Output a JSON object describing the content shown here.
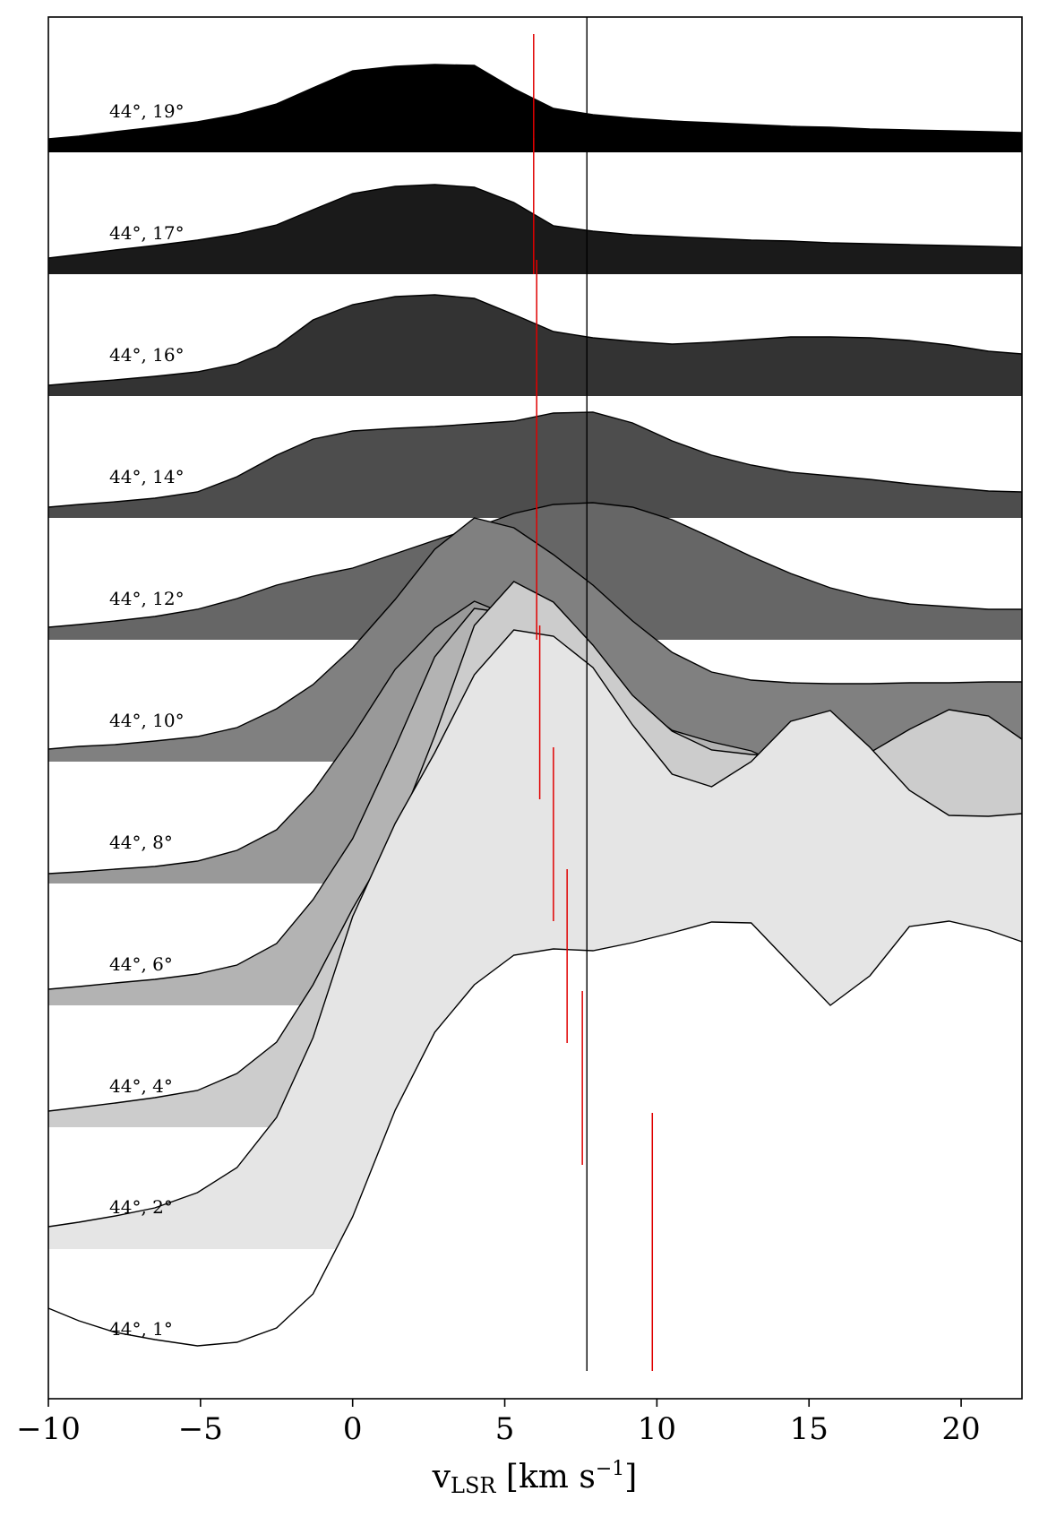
{
  "chart_data": {
    "type": "area",
    "xlabel": {
      "base": "v",
      "subscript": "LSR",
      "unit_open": " [km s",
      "superscript": "−1",
      "unit_close": "]"
    },
    "xlim": [
      -10,
      22
    ],
    "xticks": [
      -10,
      -5,
      0,
      5,
      10,
      15,
      20
    ],
    "xtick_labels": [
      "−10",
      "−5",
      "0",
      "5",
      "10",
      "15",
      "20"
    ],
    "vertical_line": {
      "x": 7.7,
      "color": "#000000"
    },
    "marker_color": "#e00000",
    "x": [
      -10,
      -9,
      -7.8,
      -6.5,
      -5.1,
      -3.8,
      -2.5,
      -1.3,
      0,
      1.4,
      2.7,
      4,
      5.3,
      6.6,
      7.9,
      9.2,
      10.5,
      11.8,
      13.1,
      14.4,
      15.7,
      17,
      18.3,
      19.6,
      20.9,
      22
    ],
    "rows": [
      {
        "label": "44°, 19°",
        "color": "#000000",
        "marker_x": 5.95,
        "values": [
          0.15,
          0.18,
          0.23,
          0.28,
          0.34,
          0.42,
          0.54,
          0.72,
          0.91,
          0.96,
          0.98,
          0.97,
          0.71,
          0.49,
          0.42,
          0.38,
          0.35,
          0.33,
          0.31,
          0.29,
          0.28,
          0.26,
          0.25,
          0.24,
          0.23,
          0.22
        ]
      },
      {
        "label": "44°, 17°",
        "color": "#1a1a1a",
        "marker_x": 5.95,
        "values": [
          0.18,
          0.22,
          0.27,
          0.32,
          0.38,
          0.45,
          0.55,
          0.72,
          0.9,
          0.98,
          1.0,
          0.97,
          0.8,
          0.54,
          0.48,
          0.44,
          0.42,
          0.4,
          0.38,
          0.37,
          0.35,
          0.34,
          0.33,
          0.32,
          0.31,
          0.3
        ]
      },
      {
        "label": "44°, 16°",
        "color": "#333333",
        "marker_x": 6.05,
        "values": [
          0.12,
          0.15,
          0.18,
          0.22,
          0.27,
          0.36,
          0.55,
          0.85,
          1.02,
          1.11,
          1.13,
          1.09,
          0.91,
          0.72,
          0.65,
          0.61,
          0.58,
          0.6,
          0.63,
          0.66,
          0.66,
          0.65,
          0.62,
          0.57,
          0.5,
          0.47
        ]
      },
      {
        "label": "44°, 14°",
        "color": "#4d4d4d",
        "marker_x": 6.05,
        "values": [
          0.12,
          0.15,
          0.18,
          0.22,
          0.29,
          0.46,
          0.7,
          0.88,
          0.97,
          1.0,
          1.02,
          1.05,
          1.08,
          1.17,
          1.18,
          1.06,
          0.86,
          0.7,
          0.59,
          0.51,
          0.47,
          0.43,
          0.38,
          0.34,
          0.3,
          0.29
        ]
      },
      {
        "label": "44°, 12°",
        "color": "#666666",
        "marker_x": 6.05,
        "values": [
          0.14,
          0.17,
          0.21,
          0.26,
          0.34,
          0.46,
          0.61,
          0.71,
          0.8,
          0.96,
          1.11,
          1.25,
          1.41,
          1.51,
          1.53,
          1.48,
          1.34,
          1.14,
          0.93,
          0.74,
          0.58,
          0.47,
          0.4,
          0.37,
          0.34,
          0.34
        ]
      },
      {
        "label": "44°, 10°",
        "color": "#808080",
        "marker_x": 6.15,
        "values": [
          0.14,
          0.17,
          0.19,
          0.23,
          0.28,
          0.38,
          0.59,
          0.86,
          1.27,
          1.81,
          2.37,
          2.72,
          2.61,
          2.31,
          1.97,
          1.57,
          1.22,
          1.0,
          0.91,
          0.88,
          0.87,
          0.87,
          0.88,
          0.88,
          0.89,
          0.89
        ]
      },
      {
        "label": "44°, 8°",
        "color": "#999999",
        "marker_x": 6.6,
        "values": [
          0.11,
          0.13,
          0.16,
          0.19,
          0.25,
          0.37,
          0.6,
          1.03,
          1.65,
          2.39,
          2.85,
          3.15,
          2.97,
          2.4,
          2.03,
          1.68,
          1.47,
          1.38,
          1.35,
          1.33,
          1.31,
          1.32,
          1.34,
          1.35,
          1.33,
          1.28
        ]
      },
      {
        "label": "44°, 6°",
        "color": "#b3b3b3",
        "marker_x": 7.05,
        "values": [
          0.18,
          0.21,
          0.25,
          0.29,
          0.35,
          0.45,
          0.69,
          1.18,
          1.86,
          2.88,
          3.89,
          4.43,
          4.37,
          4.19,
          3.89,
          3.4,
          3.07,
          2.94,
          2.84,
          2.64,
          2.45,
          2.45,
          2.51,
          2.55,
          2.57,
          2.59
        ]
      },
      {
        "label": "44°, 4°",
        "color": "#cccccc",
        "marker_x": 7.55,
        "values": [
          0.18,
          0.22,
          0.27,
          0.33,
          0.41,
          0.6,
          0.95,
          1.59,
          2.44,
          3.25,
          4.37,
          5.6,
          6.09,
          5.86,
          5.38,
          4.82,
          4.42,
          4.21,
          4.16,
          4.13,
          4.11,
          4.18,
          4.44,
          4.66,
          4.59,
          4.33
        ]
      },
      {
        "label": "44°, 2°",
        "color": "#e5e5e5",
        "marker_x": 9.85,
        "values": [
          0.25,
          0.3,
          0.37,
          0.46,
          0.63,
          0.91,
          1.47,
          2.36,
          3.71,
          4.75,
          5.54,
          6.41,
          6.91,
          6.84,
          6.49,
          5.85,
          5.3,
          5.16,
          5.44,
          5.89,
          6.01,
          5.6,
          5.12,
          4.84,
          4.83,
          4.86
        ]
      },
      {
        "label": "44°, 1°",
        "color": "#ffffff",
        "marker_x": null,
        "values": [
          0.7,
          0.56,
          0.43,
          0.35,
          0.28,
          0.32,
          0.48,
          0.86,
          1.72,
          2.91,
          3.78,
          4.31,
          4.64,
          4.71,
          4.69,
          4.78,
          4.89,
          5.01,
          5.0,
          4.54,
          4.08,
          4.41,
          4.96,
          5.02,
          4.92,
          4.79
        ]
      }
    ]
  }
}
